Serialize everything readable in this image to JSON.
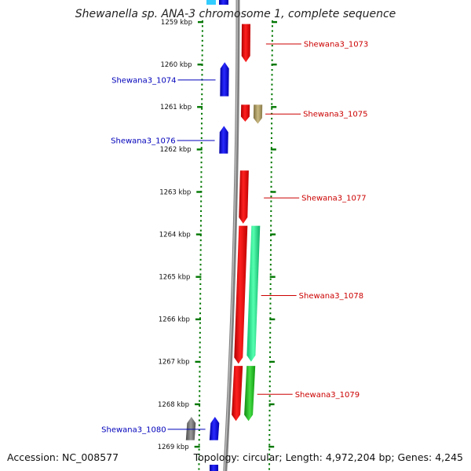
{
  "title": "Shewanella sp. ANA-3 chromosome 1, complete sequence",
  "footer": {
    "accession": "Accession: NC_008577",
    "summary": "Topology: circular; Length: 4,972,204 bp; Genes: 4,245"
  },
  "colors": {
    "forward_label": "#cc0000",
    "reverse_label": "#0000bb",
    "red_gene": "#ff0000",
    "blue_gene": "#0000ff",
    "green_gene": "#33ff99",
    "darkgreen_gene": "#22cc22",
    "tan_gene": "#a89860",
    "gray_gene": "#707070",
    "backbone": "#808080",
    "tick": "#007700"
  },
  "scale": {
    "ticks": [
      {
        "kbp": 1259,
        "label": "1259 kbp"
      },
      {
        "kbp": 1260,
        "label": "1260 kbp"
      },
      {
        "kbp": 1261,
        "label": "1261 kbp"
      },
      {
        "kbp": 1262,
        "label": "1262 kbp"
      },
      {
        "kbp": 1263,
        "label": "1263 kbp"
      },
      {
        "kbp": 1264,
        "label": "1264 kbp"
      },
      {
        "kbp": 1265,
        "label": "1265 kbp"
      },
      {
        "kbp": 1266,
        "label": "1266 kbp"
      },
      {
        "kbp": 1267,
        "label": "1267 kbp"
      },
      {
        "kbp": 1268,
        "label": "1268 kbp"
      },
      {
        "kbp": 1269,
        "label": "1269 kbp"
      }
    ]
  },
  "genes": [
    {
      "name": "Shewana3_1073",
      "strand": "+",
      "start_kbp": 1259.05,
      "end_kbp": 1259.95,
      "color": "red_gene",
      "labeled": true
    },
    {
      "name": "Shewana3_1074",
      "strand": "-",
      "start_kbp": 1259.95,
      "end_kbp": 1260.75,
      "color": "blue_gene",
      "labeled": true
    },
    {
      "name": "Shewana3_1075",
      "strand": "+",
      "start_kbp": 1260.95,
      "end_kbp": 1261.35,
      "color": "red_gene",
      "labeled": true
    },
    {
      "name": "",
      "strand": "+",
      "start_kbp": 1260.95,
      "end_kbp": 1261.4,
      "color": "tan_gene",
      "labeled": false,
      "outer": true
    },
    {
      "name": "Shewana3_1076",
      "strand": "-",
      "start_kbp": 1261.45,
      "end_kbp": 1262.1,
      "color": "blue_gene",
      "labeled": true
    },
    {
      "name": "Shewana3_1077",
      "strand": "+",
      "start_kbp": 1262.5,
      "end_kbp": 1263.75,
      "color": "red_gene",
      "labeled": true
    },
    {
      "name": "Shewana3_1078",
      "strand": "+",
      "start_kbp": 1263.8,
      "end_kbp": 1267.05,
      "color": "red_gene",
      "labeled": true
    },
    {
      "name": "",
      "strand": "+",
      "start_kbp": 1263.8,
      "end_kbp": 1267.0,
      "color": "green_gene",
      "labeled": false,
      "outer": true
    },
    {
      "name": "Shewana3_1079",
      "strand": "+",
      "start_kbp": 1267.1,
      "end_kbp": 1268.4,
      "color": "darkgreen_gene",
      "labeled": true,
      "outer": true
    },
    {
      "name": "",
      "strand": "+",
      "start_kbp": 1267.1,
      "end_kbp": 1268.4,
      "color": "red_gene",
      "labeled": false
    },
    {
      "name": "Shewana3_1080",
      "strand": "-",
      "start_kbp": 1268.3,
      "end_kbp": 1268.85,
      "color": "blue_gene",
      "labeled": true
    },
    {
      "name": "",
      "strand": "-",
      "start_kbp": 1268.3,
      "end_kbp": 1268.85,
      "color": "gray_gene",
      "labeled": false,
      "outer": true
    }
  ]
}
